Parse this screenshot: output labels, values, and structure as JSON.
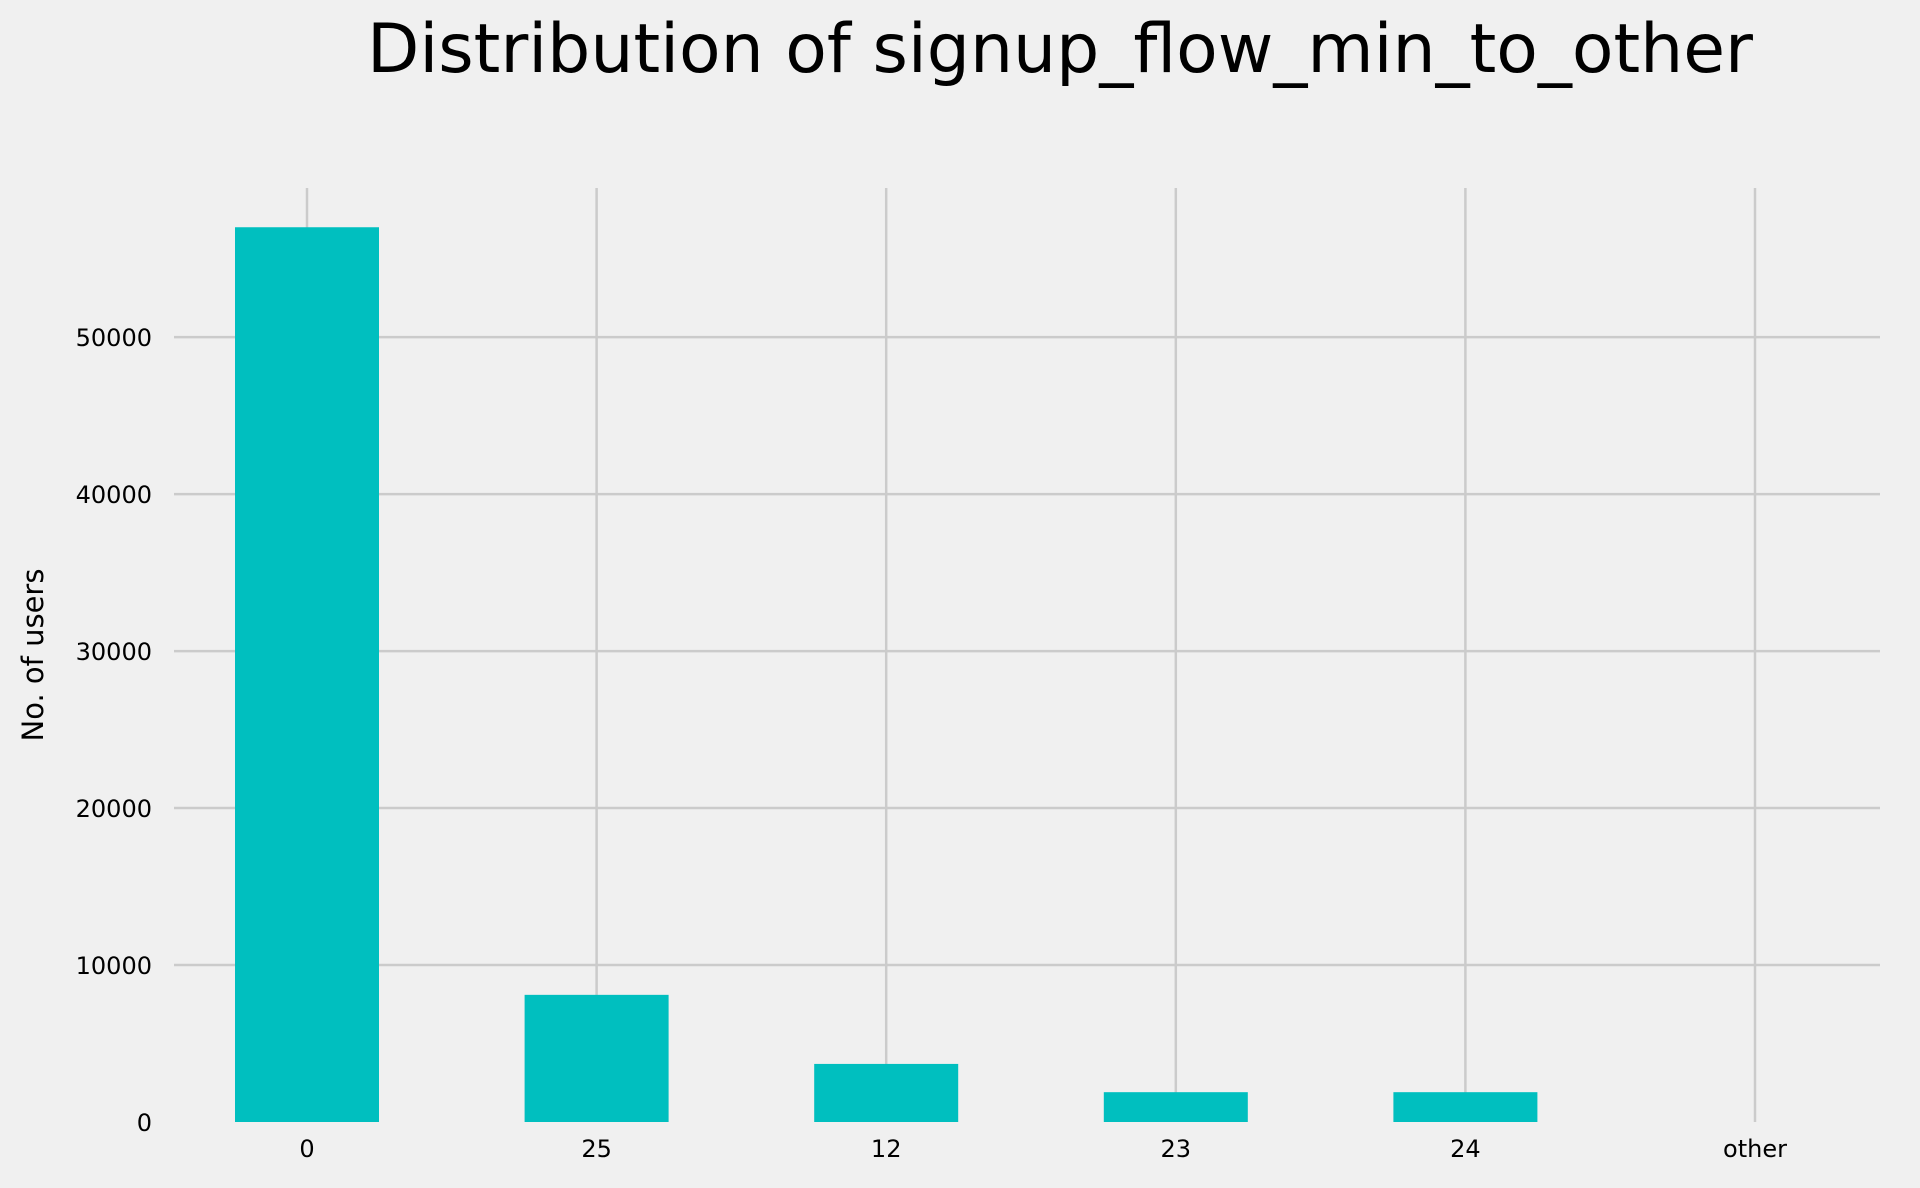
{
  "chart_data": {
    "type": "bar",
    "title": "Distribution of signup_flow_min_to_other",
    "xlabel": "",
    "ylabel": "No. of users",
    "categories": [
      "0",
      "25",
      "12",
      "23",
      "24",
      "other"
    ],
    "values": [
      57000,
      8100,
      3700,
      1900,
      1900,
      0
    ],
    "ylim": [
      0,
      59500
    ],
    "yticks": [
      0,
      10000,
      20000,
      30000,
      40000,
      50000
    ],
    "ytick_labels": [
      "0",
      "10000",
      "20000",
      "30000",
      "40000",
      "50000"
    ],
    "grid": true,
    "legend": "none",
    "bar_color": "#00bfbf",
    "background_color": "#f0f0f0",
    "grid_color": "#cbcbcb"
  }
}
